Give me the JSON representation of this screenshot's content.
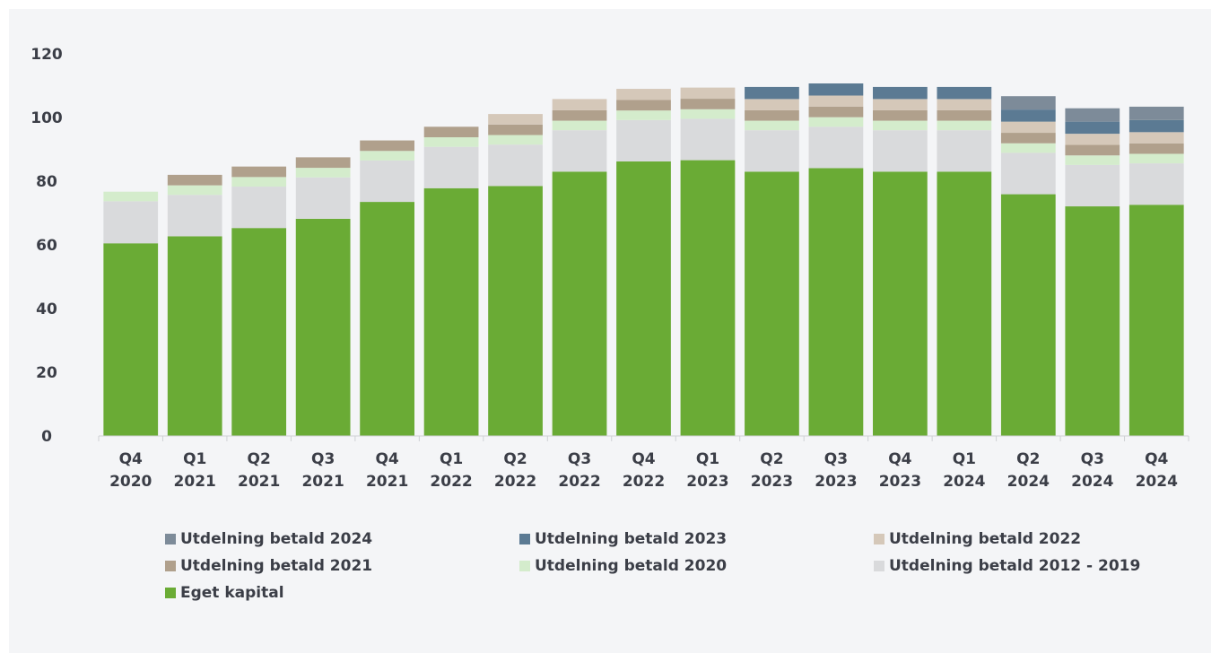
{
  "chart_data": {
    "type": "bar",
    "stacked": true,
    "title": "",
    "xlabel": "",
    "ylabel": "",
    "ylim": [
      0,
      120
    ],
    "yticks": [
      0,
      20,
      40,
      60,
      80,
      100,
      120
    ],
    "grid": false,
    "legend_position": "bottom",
    "categories": [
      [
        "Q4",
        "2020"
      ],
      [
        "Q1",
        "2021"
      ],
      [
        "Q2",
        "2021"
      ],
      [
        "Q3",
        "2021"
      ],
      [
        "Q4",
        "2021"
      ],
      [
        "Q1",
        "2022"
      ],
      [
        "Q2",
        "2022"
      ],
      [
        "Q3",
        "2022"
      ],
      [
        "Q4",
        "2022"
      ],
      [
        "Q1",
        "2023"
      ],
      [
        "Q2",
        "2023"
      ],
      [
        "Q3",
        "2023"
      ],
      [
        "Q4",
        "2023"
      ],
      [
        "Q1",
        "2024"
      ],
      [
        "Q2",
        "2024"
      ],
      [
        "Q3",
        "2024"
      ],
      [
        "Q4",
        "2024"
      ]
    ],
    "series": [
      {
        "name": "Eget kapital",
        "color": "#6aab35",
        "values": [
          60.5,
          62.7,
          65.3,
          68.2,
          73.5,
          77.8,
          78.5,
          83.0,
          86.2,
          86.6,
          83.0,
          84.1,
          83.0,
          83.0,
          75.9,
          72.1,
          72.6
        ]
      },
      {
        "name": "Utdelning betald 2012 - 2019",
        "color": "#d9dadc",
        "values": [
          13.2,
          13.0,
          13.0,
          13.0,
          13.0,
          13.0,
          13.0,
          13.0,
          13.0,
          13.0,
          13.0,
          13.0,
          13.0,
          13.0,
          13.0,
          13.0,
          13.0
        ]
      },
      {
        "name": "Utdelning betald 2020",
        "color": "#d4eccc",
        "values": [
          3.0,
          3.0,
          3.0,
          3.0,
          3.0,
          3.0,
          3.0,
          3.0,
          3.0,
          3.0,
          3.0,
          3.0,
          3.0,
          3.0,
          3.0,
          3.0,
          3.0
        ]
      },
      {
        "name": "Utdelning betald 2021",
        "color": "#b0a08c",
        "values": [
          0,
          3.3,
          3.3,
          3.3,
          3.3,
          3.3,
          3.3,
          3.3,
          3.3,
          3.3,
          3.3,
          3.3,
          3.3,
          3.3,
          3.3,
          3.3,
          3.3
        ]
      },
      {
        "name": "Utdelning betald 2022",
        "color": "#d5c8b9",
        "values": [
          0,
          0,
          0,
          0,
          0,
          0,
          3.3,
          3.5,
          3.5,
          3.5,
          3.5,
          3.5,
          3.5,
          3.5,
          3.5,
          3.5,
          3.5
        ]
      },
      {
        "name": "Utdelning betald 2023",
        "color": "#5b7a93",
        "values": [
          0,
          0,
          0,
          0,
          0,
          0,
          0,
          0,
          0,
          0,
          3.8,
          3.8,
          3.8,
          3.8,
          3.8,
          3.8,
          3.8
        ]
      },
      {
        "name": "Utdelning betald 2024",
        "color": "#7d8b99",
        "values": [
          0,
          0,
          0,
          0,
          0,
          0,
          0,
          0,
          0,
          0,
          0,
          0,
          0,
          0,
          4.2,
          4.2,
          4.2
        ]
      }
    ],
    "legend_order": [
      "Utdelning betald 2024",
      "Utdelning betald 2023",
      "Utdelning betald 2022",
      "Utdelning betald 2021",
      "Utdelning betald 2020",
      "Utdelning betald 2012 - 2019",
      "Eget kapital"
    ]
  }
}
